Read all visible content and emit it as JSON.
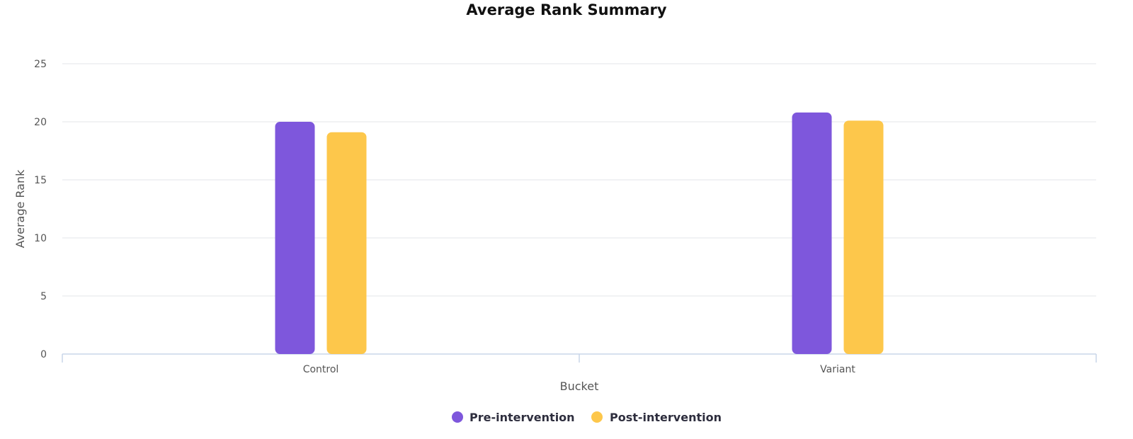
{
  "chart_data": {
    "type": "bar",
    "title": "Average Rank Summary",
    "xlabel": "Bucket",
    "ylabel": "Average Rank",
    "categories": [
      "Control",
      "Variant"
    ],
    "ylim": [
      0,
      25
    ],
    "yticks": [
      0,
      5,
      10,
      15,
      20,
      25
    ],
    "grid": true,
    "legend_position": "bottom-center",
    "series": [
      {
        "name": "Pre-intervention",
        "color": "#7e57dc",
        "values": [
          20.0,
          20.8
        ]
      },
      {
        "name": "Post-intervention",
        "color": "#fdc74b",
        "values": [
          19.1,
          20.1
        ]
      }
    ]
  }
}
